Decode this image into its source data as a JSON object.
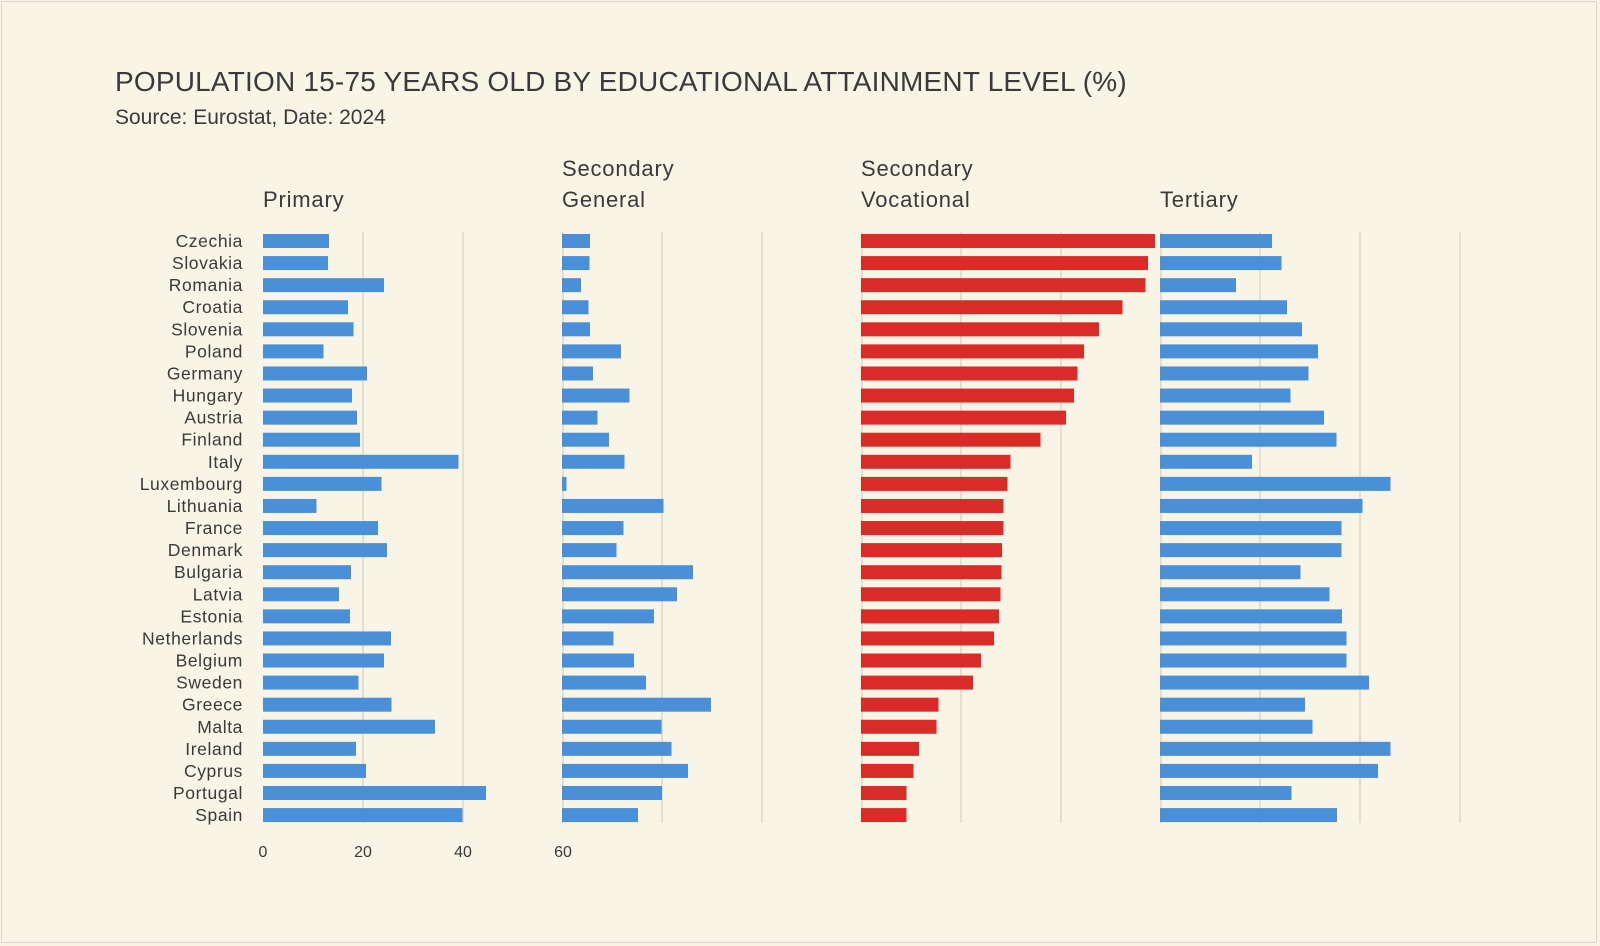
{
  "chart_data": {
    "type": "bar",
    "orientation": "horizontal",
    "title": "POPULATION 15-75 YEARS OLD  BY EDUCATIONAL ATTAINMENT LEVEL (%)",
    "subtitle": "Source: Eurostat, Date: 2024",
    "xlim": [
      0,
      60
    ],
    "x_ticks": [
      "0",
      "20",
      "40",
      "60"
    ],
    "grid": true,
    "categories": [
      "Czechia",
      "Slovakia",
      "Romania",
      "Croatia",
      "Slovenia",
      "Poland",
      "Germany",
      "Hungary",
      "Austria",
      "Finland",
      "Italy",
      "Luxembourg",
      "Lithuania",
      "France",
      "Denmark",
      "Bulgaria",
      "Latvia",
      "Estonia",
      "Netherlands",
      "Belgium",
      "Sweden",
      "Greece",
      "Malta",
      "Ireland",
      "Cyprus",
      "Portugal",
      "Spain"
    ],
    "series": [
      {
        "name": "Primary",
        "title_lines": [
          "Primary"
        ],
        "color": "#4a90d9",
        "values": [
          13.2,
          13.0,
          24.2,
          17.0,
          18.1,
          12.1,
          20.8,
          17.8,
          18.8,
          19.4,
          39.1,
          23.7,
          10.7,
          23.0,
          24.8,
          17.6,
          15.2,
          17.4,
          25.6,
          24.2,
          19.1,
          25.7,
          34.4,
          18.6,
          20.6,
          44.6,
          39.9
        ]
      },
      {
        "name": "Secondary General",
        "title_lines": [
          "Secondary",
          "General"
        ],
        "color": "#4a90d9",
        "values": [
          5.6,
          5.5,
          3.8,
          5.3,
          5.6,
          11.8,
          6.2,
          13.5,
          7.1,
          9.4,
          12.5,
          0.9,
          20.3,
          12.3,
          10.9,
          26.2,
          23.0,
          18.4,
          10.3,
          14.4,
          16.8,
          29.8,
          19.9,
          21.9,
          25.2,
          20.0,
          15.2
        ]
      },
      {
        "name": "Secondary Vocational",
        "title_lines": [
          "Secondary",
          "Vocational"
        ],
        "color": "#d92b28",
        "values": [
          58.8,
          57.4,
          56.9,
          52.3,
          47.6,
          44.6,
          43.3,
          42.6,
          41.0,
          35.9,
          29.9,
          29.3,
          28.5,
          28.5,
          28.2,
          28.1,
          27.9,
          27.6,
          26.6,
          24.0,
          22.4,
          15.5,
          15.1,
          11.6,
          10.5,
          9.1,
          9.1
        ]
      },
      {
        "name": "Tertiary",
        "title_lines": [
          "Tertiary"
        ],
        "color": "#4a90d9",
        "values": [
          22.4,
          24.3,
          15.2,
          25.4,
          28.4,
          31.6,
          29.7,
          26.1,
          32.8,
          35.3,
          18.4,
          46.1,
          40.5,
          36.3,
          36.3,
          28.1,
          33.9,
          36.4,
          37.3,
          37.3,
          41.8,
          29.0,
          30.5,
          46.1,
          43.6,
          26.3,
          35.4
        ]
      }
    ]
  }
}
